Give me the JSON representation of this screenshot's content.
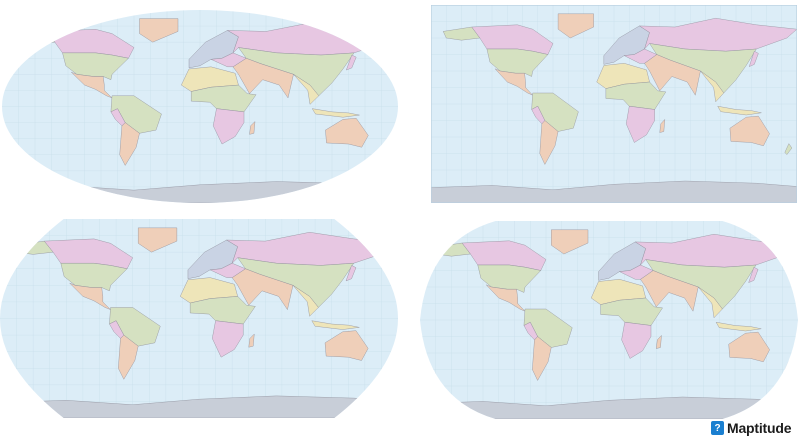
{
  "maps": [
    {
      "projection_shape": "ellipse"
    },
    {
      "projection_shape": "rectangle"
    },
    {
      "projection_shape": "flat-polar-pointed"
    },
    {
      "projection_shape": "flat-polar-rounded"
    }
  ],
  "colors": {
    "ocean": "#dcedf7",
    "graticule": "#c6dcea",
    "land_pink": "#e7c7e2",
    "land_green": "#d5e1c1",
    "land_orange": "#efcfb9",
    "land_yellow": "#eee5b9",
    "land_blue": "#c9d3e4",
    "antarctica": "#c8ced8",
    "border": "#8a8a96",
    "logo_accent": "#1a7fd0"
  },
  "logo": {
    "text": "Maptitude",
    "icon": "maptitude-head-icon"
  }
}
